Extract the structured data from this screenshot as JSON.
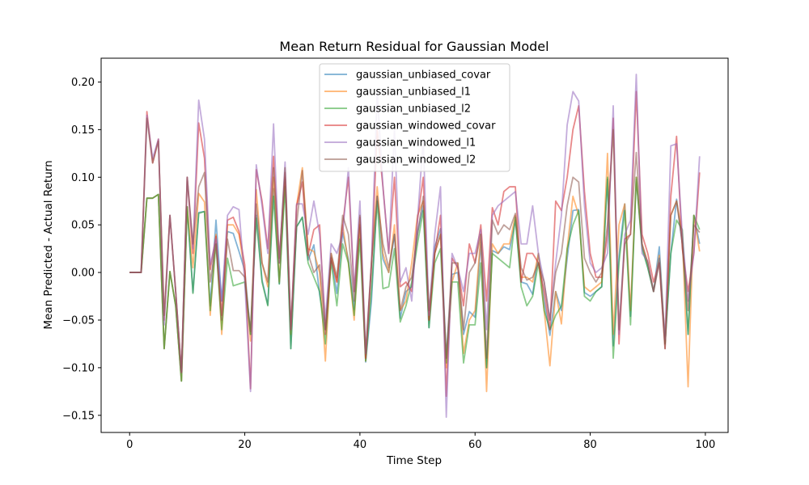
{
  "chart_data": {
    "type": "line",
    "title": "Mean Return Residual for Gaussian Model",
    "xlabel": "Time Step",
    "ylabel": "Mean Predicted - Actual Return",
    "xlim": [
      -4.95,
      103.95
    ],
    "ylim": [
      -0.168,
      0.225
    ],
    "xticks": [
      0,
      20,
      40,
      60,
      80,
      100
    ],
    "yticks": [
      -0.15,
      -0.1,
      -0.05,
      0.0,
      0.05,
      0.1,
      0.15,
      0.2
    ],
    "ytick_labels": [
      "−0.15",
      "−0.10",
      "−0.05",
      "0.00",
      "0.05",
      "0.10",
      "0.15",
      "0.20"
    ],
    "grid": false,
    "legend_position": "upper center",
    "colors": [
      "#1f77b4",
      "#ff7f0e",
      "#2ca02c",
      "#d62728",
      "#9467bd",
      "#8c564b"
    ],
    "series": [
      {
        "name": "gaussian_unbiased_covar",
        "values": [
          0,
          0,
          0,
          0.078,
          0.078,
          0.082,
          -0.08,
          0.001,
          -0.035,
          -0.114,
          0.069,
          -0.021,
          0.063,
          0.064,
          -0.035,
          0.055,
          -0.03,
          0.043,
          0.041,
          0.022,
          0.002,
          -0.065,
          0.06,
          -0.008,
          -0.034,
          0.088,
          -0.012,
          0.098,
          -0.08,
          0.048,
          0.058,
          0.013,
          0.029,
          -0.023,
          -0.06,
          0.016,
          -0.022,
          0.042,
          0.014,
          -0.039,
          0.047,
          -0.094,
          -0.03,
          0.08,
          0.014,
          0,
          0.04,
          -0.048,
          -0.02,
          -0.015,
          0.041,
          0.07,
          -0.058,
          0.027,
          0.046,
          -0.09,
          -0.002,
          0,
          -0.065,
          -0.041,
          -0.047,
          0.032,
          -0.1,
          0.023,
          0.02,
          0.027,
          0.024,
          0.055,
          -0.01,
          -0.012,
          -0.023,
          0.02,
          -0.03,
          -0.066,
          -0.02,
          -0.04,
          0.015,
          0.065,
          0.066,
          -0.021,
          -0.025,
          -0.02,
          -0.015,
          0.098,
          -0.077,
          0.017,
          0.072,
          -0.046,
          0.098,
          0.028,
          0.005,
          -0.02,
          0.027,
          -0.075,
          0.02,
          0.077,
          0.03,
          -0.065,
          0.06,
          0.03
        ]
      },
      {
        "name": "gaussian_unbiased_l1",
        "values": [
          0,
          0,
          0,
          0.078,
          0.078,
          0.082,
          -0.08,
          0.001,
          -0.035,
          -0.114,
          0.069,
          0.005,
          0.083,
          0.074,
          -0.045,
          0.04,
          -0.065,
          0.05,
          0.05,
          0.04,
          0,
          -0.072,
          0.087,
          0.01,
          -0.015,
          0.1,
          -0.01,
          0.1,
          -0.065,
          0.07,
          0.11,
          0.025,
          0.022,
          0,
          -0.093,
          0.02,
          -0.01,
          0.05,
          0.01,
          -0.05,
          0.05,
          -0.093,
          0.01,
          0.09,
          0.02,
          0,
          0.05,
          -0.04,
          -0.03,
          0.01,
          0.06,
          0.075,
          -0.05,
          0.02,
          0.04,
          -0.1,
          -0.01,
          0.01,
          -0.085,
          -0.05,
          -0.04,
          0.04,
          -0.125,
          0.03,
          0.02,
          0.03,
          0.03,
          0.06,
          -0.005,
          -0.005,
          -0.01,
          0.02,
          -0.04,
          -0.098,
          -0.02,
          -0.054,
          0.025,
          0.08,
          0.06,
          -0.015,
          -0.02,
          -0.015,
          -0.01,
          0.125,
          -0.065,
          0.05,
          0.072,
          -0.04,
          0.1,
          0.03,
          0.01,
          -0.02,
          0.018,
          -0.07,
          0.06,
          0.075,
          0.04,
          -0.12,
          0.06,
          0.022
        ]
      },
      {
        "name": "gaussian_unbiased_l2",
        "values": [
          0,
          0,
          0,
          0.078,
          0.078,
          0.082,
          -0.08,
          0.001,
          -0.035,
          -0.114,
          0.069,
          -0.022,
          0.062,
          0.064,
          -0.04,
          0.03,
          -0.06,
          0.015,
          -0.014,
          -0.012,
          -0.01,
          -0.065,
          0.057,
          -0.01,
          -0.035,
          0.08,
          -0.012,
          0.09,
          -0.08,
          0.048,
          0.058,
          0.01,
          -0.005,
          -0.02,
          -0.075,
          0.012,
          -0.035,
          0.03,
          0.01,
          -0.045,
          0.035,
          -0.093,
          -0.02,
          0.075,
          -0.017,
          -0.015,
          0.025,
          -0.052,
          -0.035,
          -0.01,
          0.03,
          0.065,
          -0.058,
          0.01,
          0.025,
          -0.095,
          -0.01,
          -0.01,
          -0.095,
          -0.055,
          -0.055,
          0.01,
          -0.1,
          0.02,
          0.015,
          0.01,
          0.005,
          0.058,
          -0.015,
          -0.035,
          -0.025,
          0.01,
          -0.04,
          -0.06,
          -0.045,
          -0.035,
          0.025,
          0.05,
          0.065,
          -0.025,
          -0.03,
          -0.02,
          -0.015,
          0.1,
          -0.09,
          0.01,
          0.065,
          -0.055,
          0.1,
          0.025,
          0.005,
          -0.02,
          0.015,
          -0.075,
          0.02,
          0.055,
          0.045,
          -0.065,
          0.06,
          0.045
        ]
      },
      {
        "name": "gaussian_windowed_covar",
        "values": [
          0,
          0,
          0,
          0.169,
          0.115,
          0.14,
          -0.05,
          0.06,
          -0.02,
          -0.105,
          0.1,
          0.02,
          0.157,
          0.12,
          0.003,
          0.038,
          -0.045,
          0.055,
          0.058,
          0.043,
          0.008,
          -0.122,
          0.108,
          0.075,
          0.025,
          0.122,
          0.015,
          0.105,
          -0.06,
          0.07,
          0.095,
          0.018,
          0.045,
          0.05,
          -0.065,
          0.015,
          -0.01,
          0.05,
          0.1,
          -0.02,
          0.058,
          -0.09,
          0.005,
          0.15,
          0.09,
          0.02,
          0.1,
          -0.015,
          -0.01,
          -0.02,
          0.055,
          0.1,
          -0.05,
          0.02,
          0.06,
          -0.13,
          0.015,
          0.005,
          -0.035,
          0.03,
          0.01,
          0.05,
          -0.03,
          0.068,
          0.05,
          0.085,
          0.09,
          0.09,
          -0.01,
          0.02,
          0.02,
          0.01,
          -0.02,
          -0.06,
          0.075,
          0.065,
          0.1,
          0.15,
          0.175,
          0.085,
          0.02,
          -0.005,
          -0.005,
          0.04,
          0.162,
          -0.075,
          0.035,
          0.04,
          0.19,
          0.04,
          0.02,
          -0.01,
          0.01,
          -0.08,
          0.08,
          0.143,
          0.025,
          -0.02,
          0.02,
          0.105
        ]
      },
      {
        "name": "gaussian_windowed_l1",
        "values": [
          0,
          0,
          0,
          0.165,
          0.12,
          0.14,
          -0.055,
          0.06,
          -0.02,
          -0.105,
          0.1,
          0.025,
          0.181,
          0.14,
          0.008,
          0.035,
          -0.03,
          0.06,
          0.069,
          0.066,
          -0.01,
          -0.125,
          0.113,
          0.07,
          0.02,
          0.156,
          0.01,
          0.116,
          -0.06,
          0.072,
          0.072,
          0.04,
          0.075,
          0.04,
          -0.05,
          0.03,
          0.02,
          0.04,
          0.11,
          -0.02,
          0.075,
          -0.085,
          0.01,
          0.19,
          0.09,
          0.02,
          0.15,
          -0.01,
          0.005,
          -0.03,
          0.055,
          0.14,
          -0.045,
          0.04,
          0.09,
          -0.152,
          0.02,
          0.005,
          -0.02,
          0.02,
          0.02,
          0.045,
          -0.06,
          0.06,
          0.07,
          0.075,
          0.08,
          0.085,
          0.03,
          0.03,
          0.07,
          0.02,
          -0.01,
          -0.05,
          0.01,
          0.06,
          0.155,
          0.19,
          0.18,
          0.07,
          0.01,
          0.0,
          0.005,
          0.02,
          0.175,
          -0.065,
          0.04,
          0.055,
          0.208,
          0.02,
          0.012,
          -0.02,
          0.015,
          -0.07,
          0.133,
          0.135,
          0.04,
          -0.03,
          0.02,
          0.122
        ]
      },
      {
        "name": "gaussian_windowed_l2",
        "values": [
          0,
          0,
          0,
          0.162,
          0.115,
          0.138,
          -0.045,
          0.06,
          -0.02,
          -0.105,
          0.1,
          0.03,
          0.09,
          0.105,
          -0.01,
          0.03,
          -0.05,
          0.035,
          0.002,
          0.002,
          -0.005,
          -0.062,
          0.072,
          0.01,
          -0.01,
          0.11,
          0.01,
          0.11,
          -0.06,
          0.05,
          0.107,
          0.02,
          0.0,
          0.008,
          -0.06,
          0.02,
          -0.005,
          0.06,
          0.04,
          -0.03,
          0.06,
          -0.085,
          0.01,
          0.08,
          0.03,
          0.005,
          0.04,
          -0.04,
          -0.015,
          -0.005,
          0.04,
          0.08,
          -0.04,
          0.02,
          0.04,
          -0.09,
          0.01,
          0.01,
          -0.06,
          0.0,
          0.01,
          0.04,
          -0.09,
          0.055,
          0.04,
          0.05,
          0.045,
          0.062,
          0.005,
          -0.008,
          -0.005,
          0.01,
          -0.01,
          -0.05,
          0.0,
          0.02,
          0.07,
          0.1,
          0.095,
          0.015,
          0.0,
          -0.01,
          0.0,
          0.05,
          0.15,
          -0.06,
          0.03,
          0.04,
          0.126,
          0.03,
          0.01,
          -0.02,
          0.01,
          -0.08,
          0.06,
          0.075,
          0.03,
          -0.04,
          0.05,
          0.042
        ]
      }
    ]
  }
}
